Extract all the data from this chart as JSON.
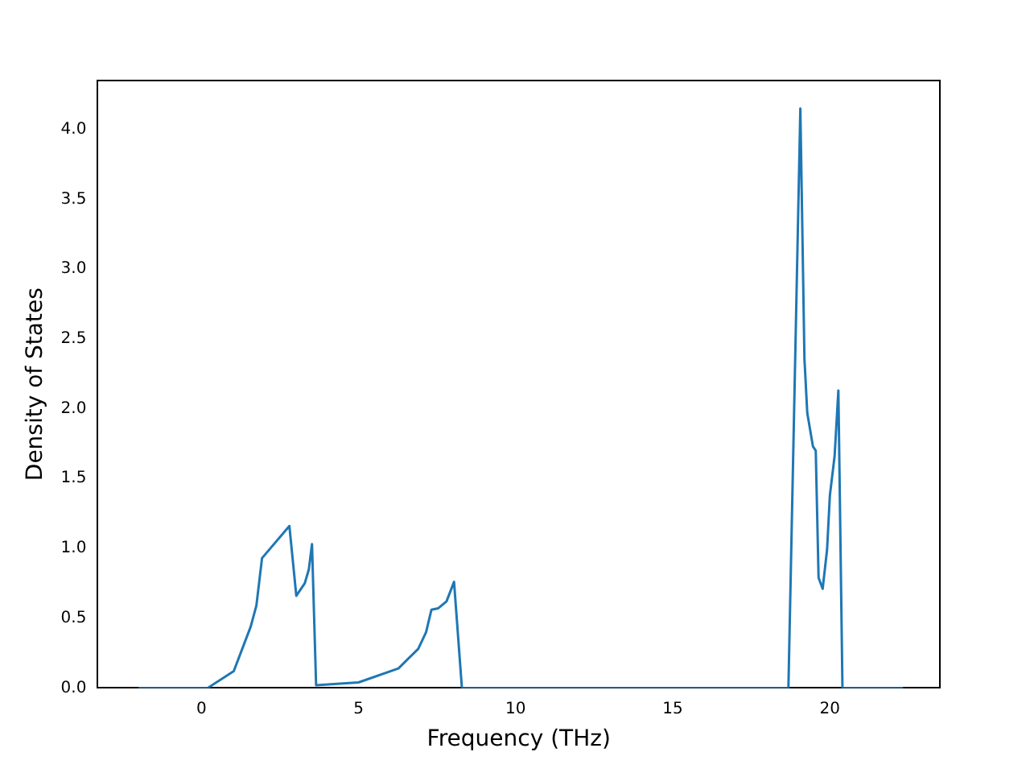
{
  "chart_data": {
    "type": "line",
    "xlabel": "Frequency (THz)",
    "ylabel": "Density of States",
    "x": [
      -2,
      0,
      0.2,
      1.03,
      1.57,
      1.75,
      1.93,
      2.8,
      3.02,
      3.29,
      3.42,
      3.52,
      3.65,
      5.0,
      6.27,
      6.9,
      7.15,
      7.32,
      7.53,
      7.8,
      8.04,
      8.29,
      18.68,
      19.06,
      19.19,
      19.28,
      19.46,
      19.55,
      19.64,
      19.77,
      19.91,
      20.0,
      20.15,
      20.27,
      20.4,
      22.33
    ],
    "series": [
      {
        "color": "#1f77b4",
        "values": [
          0,
          0,
          0,
          0.12,
          0.44,
          0.59,
          0.93,
          1.16,
          0.66,
          0.75,
          0.85,
          1.03,
          0.02,
          0.04,
          0.14,
          0.28,
          0.4,
          0.56,
          0.57,
          0.62,
          0.76,
          0,
          0,
          4.15,
          2.36,
          1.97,
          1.73,
          1.7,
          0.79,
          0.71,
          0.99,
          1.38,
          1.66,
          2.13,
          0,
          0
        ]
      }
    ],
    "xlim": [
      -3.3,
      23.5
    ],
    "ylim": [
      0,
      4.35
    ],
    "xticks": [
      0,
      5,
      10,
      15,
      20
    ],
    "yticks": [
      {
        "value": 0,
        "label": "0.0"
      },
      {
        "value": 0.5,
        "label": "0.5"
      },
      {
        "value": 1,
        "label": "1.0"
      },
      {
        "value": 1.5,
        "label": "1.5"
      },
      {
        "value": 2,
        "label": "2.0"
      },
      {
        "value": 2.5,
        "label": "2.5"
      },
      {
        "value": 3,
        "label": "3.0"
      },
      {
        "value": 3.5,
        "label": "3.5"
      },
      {
        "value": 4,
        "label": "4.0"
      }
    ],
    "grid": false,
    "legend": false,
    "marker": "none",
    "line_style": "solid"
  }
}
